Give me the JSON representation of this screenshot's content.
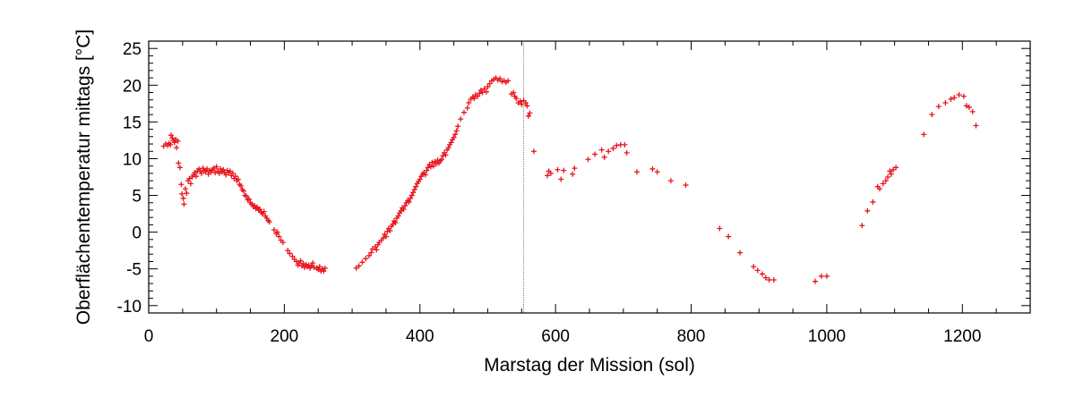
{
  "chart_data": {
    "type": "scatter",
    "xlabel": "Marstag der Mission (sol)",
    "ylabel": "Oberflächentemperatur mittags [°C]",
    "xlim": [
      0,
      1300
    ],
    "ylim": [
      -11,
      26
    ],
    "x_ticks": [
      0,
      200,
      400,
      600,
      800,
      1000,
      1200
    ],
    "y_ticks": [
      -10,
      -5,
      0,
      5,
      10,
      15,
      20,
      25
    ],
    "x_tick_labels": [
      "0",
      "200",
      "400",
      "600",
      "800",
      "1000",
      "1200"
    ],
    "y_tick_labels": [
      "-10",
      "-5",
      "0",
      "5",
      "10",
      "15",
      "20",
      "25"
    ],
    "marker": "plus",
    "marker_color": "#e8141c",
    "vline_x": 553,
    "grid": false,
    "points": [
      [
        22,
        11.7
      ],
      [
        25,
        12.0
      ],
      [
        28,
        11.8
      ],
      [
        30,
        12.1
      ],
      [
        32,
        11.9
      ],
      [
        33,
        13.2
      ],
      [
        35,
        12.8
      ],
      [
        36,
        12.5
      ],
      [
        38,
        12.2
      ],
      [
        40,
        12.6
      ],
      [
        41,
        11.5
      ],
      [
        43,
        12.4
      ],
      [
        44,
        9.4
      ],
      [
        46,
        8.8
      ],
      [
        48,
        6.5
      ],
      [
        49,
        5.2
      ],
      [
        51,
        4.6
      ],
      [
        52,
        3.8
      ],
      [
        54,
        5.9
      ],
      [
        56,
        5.3
      ],
      [
        58,
        7.0
      ],
      [
        60,
        7.3
      ],
      [
        62,
        6.6
      ],
      [
        64,
        7.5
      ],
      [
        66,
        7.8
      ],
      [
        68,
        8.1
      ],
      [
        70,
        7.6
      ],
      [
        72,
        8.3
      ],
      [
        74,
        8.6
      ],
      [
        76,
        8.3
      ],
      [
        78,
        8.0
      ],
      [
        80,
        8.7
      ],
      [
        82,
        8.4
      ],
      [
        84,
        8.2
      ],
      [
        86,
        8.6
      ],
      [
        88,
        7.9
      ],
      [
        90,
        8.4
      ],
      [
        92,
        8.2
      ],
      [
        94,
        8.5
      ],
      [
        96,
        8.7
      ],
      [
        98,
        8.1
      ],
      [
        100,
        8.9
      ],
      [
        102,
        8.3
      ],
      [
        104,
        8.0
      ],
      [
        106,
        8.6
      ],
      [
        108,
        8.2
      ],
      [
        110,
        8.5
      ],
      [
        112,
        8.1
      ],
      [
        114,
        7.8
      ],
      [
        116,
        8.4
      ],
      [
        118,
        8.1
      ],
      [
        120,
        8.3
      ],
      [
        122,
        7.7
      ],
      [
        124,
        8.0
      ],
      [
        126,
        7.3
      ],
      [
        128,
        7.6
      ],
      [
        130,
        7.0
      ],
      [
        132,
        7.2
      ],
      [
        134,
        6.5
      ],
      [
        136,
        6.3
      ],
      [
        138,
        5.8
      ],
      [
        140,
        5.6
      ],
      [
        142,
        5.0
      ],
      [
        144,
        4.9
      ],
      [
        146,
        4.4
      ],
      [
        148,
        4.5
      ],
      [
        150,
        4.0
      ],
      [
        152,
        3.8
      ],
      [
        154,
        3.5
      ],
      [
        156,
        3.6
      ],
      [
        158,
        3.2
      ],
      [
        160,
        3.4
      ],
      [
        162,
        3.0
      ],
      [
        164,
        3.1
      ],
      [
        166,
        2.7
      ],
      [
        168,
        2.5
      ],
      [
        170,
        2.8
      ],
      [
        172,
        2.2
      ],
      [
        174,
        1.9
      ],
      [
        176,
        1.6
      ],
      [
        178,
        1.4
      ],
      [
        185,
        0.3
      ],
      [
        188,
        -0.2
      ],
      [
        190,
        0.0
      ],
      [
        192,
        -0.6
      ],
      [
        195,
        -1.1
      ],
      [
        198,
        -1.4
      ],
      [
        205,
        -2.5
      ],
      [
        208,
        -2.9
      ],
      [
        212,
        -3.3
      ],
      [
        215,
        -3.7
      ],
      [
        218,
        -4.0
      ],
      [
        220,
        -4.5
      ],
      [
        222,
        -4.2
      ],
      [
        224,
        -3.9
      ],
      [
        226,
        -4.6
      ],
      [
        228,
        -4.3
      ],
      [
        230,
        -4.8
      ],
      [
        232,
        -4.4
      ],
      [
        234,
        -4.7
      ],
      [
        236,
        -4.5
      ],
      [
        238,
        -4.9
      ],
      [
        240,
        -4.6
      ],
      [
        242,
        -4.2
      ],
      [
        244,
        -4.8
      ],
      [
        248,
        -4.9
      ],
      [
        250,
        -5.1
      ],
      [
        252,
        -4.7
      ],
      [
        254,
        -5.3
      ],
      [
        256,
        -5.0
      ],
      [
        258,
        -5.3
      ],
      [
        260,
        -4.9
      ],
      [
        306,
        -4.9
      ],
      [
        310,
        -4.6
      ],
      [
        315,
        -4.1
      ],
      [
        320,
        -3.6
      ],
      [
        325,
        -3.2
      ],
      [
        328,
        -2.8
      ],
      [
        330,
        -2.3
      ],
      [
        334,
        -2.0
      ],
      [
        336,
        -2.4
      ],
      [
        338,
        -1.7
      ],
      [
        340,
        -1.4
      ],
      [
        343,
        -1.1
      ],
      [
        346,
        -0.8
      ],
      [
        348,
        -0.3
      ],
      [
        350,
        -0.6
      ],
      [
        352,
        0.1
      ],
      [
        354,
        0.5
      ],
      [
        356,
        0.2
      ],
      [
        358,
        0.8
      ],
      [
        360,
        1.1
      ],
      [
        362,
        1.5
      ],
      [
        364,
        1.3
      ],
      [
        366,
        1.9
      ],
      [
        368,
        2.2
      ],
      [
        370,
        2.6
      ],
      [
        372,
        2.9
      ],
      [
        374,
        3.3
      ],
      [
        376,
        3.1
      ],
      [
        378,
        3.6
      ],
      [
        380,
        4.0
      ],
      [
        382,
        4.3
      ],
      [
        384,
        4.1
      ],
      [
        386,
        4.6
      ],
      [
        388,
        5.0
      ],
      [
        390,
        5.4
      ],
      [
        392,
        5.8
      ],
      [
        394,
        6.2
      ],
      [
        396,
        6.6
      ],
      [
        398,
        6.9
      ],
      [
        400,
        7.2
      ],
      [
        402,
        7.6
      ],
      [
        404,
        7.9
      ],
      [
        406,
        8.1
      ],
      [
        408,
        7.8
      ],
      [
        410,
        8.4
      ],
      [
        412,
        8.8
      ],
      [
        414,
        9.2
      ],
      [
        416,
        8.9
      ],
      [
        418,
        9.5
      ],
      [
        420,
        9.0
      ],
      [
        422,
        9.6
      ],
      [
        424,
        9.3
      ],
      [
        426,
        9.8
      ],
      [
        428,
        9.4
      ],
      [
        430,
        9.7
      ],
      [
        432,
        9.9
      ],
      [
        434,
        10.4
      ],
      [
        436,
        10.8
      ],
      [
        438,
        10.5
      ],
      [
        440,
        11.2
      ],
      [
        442,
        11.5
      ],
      [
        444,
        11.9
      ],
      [
        446,
        12.2
      ],
      [
        448,
        12.6
      ],
      [
        450,
        12.9
      ],
      [
        452,
        13.3
      ],
      [
        454,
        13.8
      ],
      [
        456,
        14.4
      ],
      [
        460,
        15.4
      ],
      [
        465,
        16.3
      ],
      [
        470,
        16.9
      ],
      [
        472,
        17.6
      ],
      [
        475,
        18.1
      ],
      [
        478,
        18.4
      ],
      [
        480,
        18.2
      ],
      [
        482,
        18.7
      ],
      [
        485,
        18.5
      ],
      [
        488,
        18.9
      ],
      [
        490,
        19.3
      ],
      [
        492,
        19.0
      ],
      [
        495,
        19.5
      ],
      [
        498,
        19.1
      ],
      [
        500,
        19.8
      ],
      [
        503,
        20.2
      ],
      [
        506,
        20.6
      ],
      [
        509,
        20.8
      ],
      [
        512,
        21.0
      ],
      [
        515,
        20.7
      ],
      [
        518,
        20.9
      ],
      [
        521,
        20.5
      ],
      [
        524,
        20.6
      ],
      [
        527,
        20.4
      ],
      [
        530,
        20.6
      ],
      [
        535,
        18.8
      ],
      [
        538,
        19.0
      ],
      [
        540,
        18.5
      ],
      [
        542,
        18.2
      ],
      [
        545,
        17.6
      ],
      [
        548,
        17.8
      ],
      [
        550,
        17.4
      ],
      [
        553,
        17.9
      ],
      [
        556,
        17.6
      ],
      [
        558,
        17.2
      ],
      [
        560,
        15.8
      ],
      [
        562,
        16.2
      ],
      [
        568,
        11.0
      ],
      [
        588,
        7.7
      ],
      [
        590,
        8.3
      ],
      [
        593,
        8.0
      ],
      [
        603,
        8.5
      ],
      [
        608,
        7.2
      ],
      [
        612,
        8.4
      ],
      [
        625,
        7.9
      ],
      [
        628,
        8.7
      ],
      [
        648,
        9.9
      ],
      [
        658,
        10.6
      ],
      [
        668,
        11.2
      ],
      [
        672,
        10.2
      ],
      [
        678,
        11.0
      ],
      [
        685,
        11.4
      ],
      [
        690,
        11.8
      ],
      [
        696,
        11.9
      ],
      [
        702,
        11.9
      ],
      [
        705,
        10.8
      ],
      [
        720,
        8.2
      ],
      [
        743,
        8.6
      ],
      [
        750,
        8.2
      ],
      [
        770,
        7.0
      ],
      [
        792,
        6.4
      ],
      [
        842,
        0.5
      ],
      [
        855,
        -0.6
      ],
      [
        872,
        -2.8
      ],
      [
        892,
        -4.7
      ],
      [
        898,
        -5.2
      ],
      [
        905,
        -5.7
      ],
      [
        910,
        -6.2
      ],
      [
        915,
        -6.5
      ],
      [
        922,
        -6.5
      ],
      [
        983,
        -6.7
      ],
      [
        992,
        -6.0
      ],
      [
        1000,
        -6.0
      ],
      [
        1052,
        0.9
      ],
      [
        1060,
        2.9
      ],
      [
        1068,
        4.1
      ],
      [
        1075,
        6.2
      ],
      [
        1078,
        5.9
      ],
      [
        1083,
        6.6
      ],
      [
        1087,
        7.0
      ],
      [
        1090,
        7.5
      ],
      [
        1093,
        8.3
      ],
      [
        1095,
        7.9
      ],
      [
        1098,
        8.5
      ],
      [
        1102,
        8.8
      ],
      [
        1143,
        13.3
      ],
      [
        1155,
        16.0
      ],
      [
        1165,
        17.1
      ],
      [
        1175,
        17.6
      ],
      [
        1183,
        18.1
      ],
      [
        1188,
        18.3
      ],
      [
        1195,
        18.7
      ],
      [
        1202,
        18.5
      ],
      [
        1206,
        17.2
      ],
      [
        1210,
        17.0
      ],
      [
        1215,
        16.4
      ],
      [
        1220,
        14.5
      ]
    ]
  }
}
